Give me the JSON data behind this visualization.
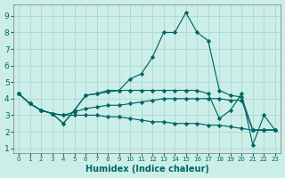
{
  "xlabel": "Humidex (Indice chaleur)",
  "xlim": [
    -0.5,
    23.5
  ],
  "ylim": [
    0.7,
    9.7
  ],
  "yticks": [
    1,
    2,
    3,
    4,
    5,
    6,
    7,
    8,
    9
  ],
  "xticks": [
    0,
    1,
    2,
    3,
    4,
    5,
    6,
    7,
    8,
    9,
    10,
    11,
    12,
    13,
    14,
    15,
    16,
    17,
    18,
    19,
    20,
    21,
    22,
    23
  ],
  "bg_color": "#cceee8",
  "grid_color": "#aad8d0",
  "line_color": "#006666",
  "lines": [
    [
      4.3,
      3.7,
      3.3,
      3.1,
      2.5,
      3.3,
      4.2,
      4.3,
      4.4,
      4.5,
      5.2,
      5.5,
      6.5,
      8.0,
      8.0,
      9.2,
      8.0,
      7.5,
      4.5,
      4.2,
      4.1,
      2.1,
      2.1,
      2.1
    ],
    [
      4.3,
      3.7,
      3.3,
      3.1,
      3.0,
      3.2,
      3.4,
      3.5,
      3.6,
      3.6,
      3.7,
      3.8,
      3.9,
      4.0,
      4.0,
      4.0,
      4.0,
      4.0,
      4.0,
      3.9,
      3.9,
      2.1,
      2.1,
      2.1
    ],
    [
      4.3,
      3.7,
      3.3,
      3.1,
      3.0,
      3.0,
      3.0,
      3.0,
      2.9,
      2.9,
      2.8,
      2.7,
      2.6,
      2.6,
      2.5,
      2.5,
      2.5,
      2.4,
      2.4,
      2.3,
      2.2,
      2.1,
      2.1,
      2.1
    ],
    [
      4.3,
      3.7,
      3.3,
      3.1,
      2.5,
      3.3,
      4.2,
      4.3,
      4.5,
      4.5,
      4.5,
      4.5,
      4.5,
      4.5,
      4.5,
      4.5,
      4.5,
      4.3,
      2.8,
      3.3,
      4.3,
      1.2,
      3.0,
      2.1
    ]
  ],
  "marker": "D",
  "markersize": 2.2,
  "linewidth": 0.85,
  "tick_fontsize_x": 5.0,
  "tick_fontsize_y": 6.5,
  "xlabel_fontsize": 7.0,
  "xlabel_fontweight": "bold"
}
